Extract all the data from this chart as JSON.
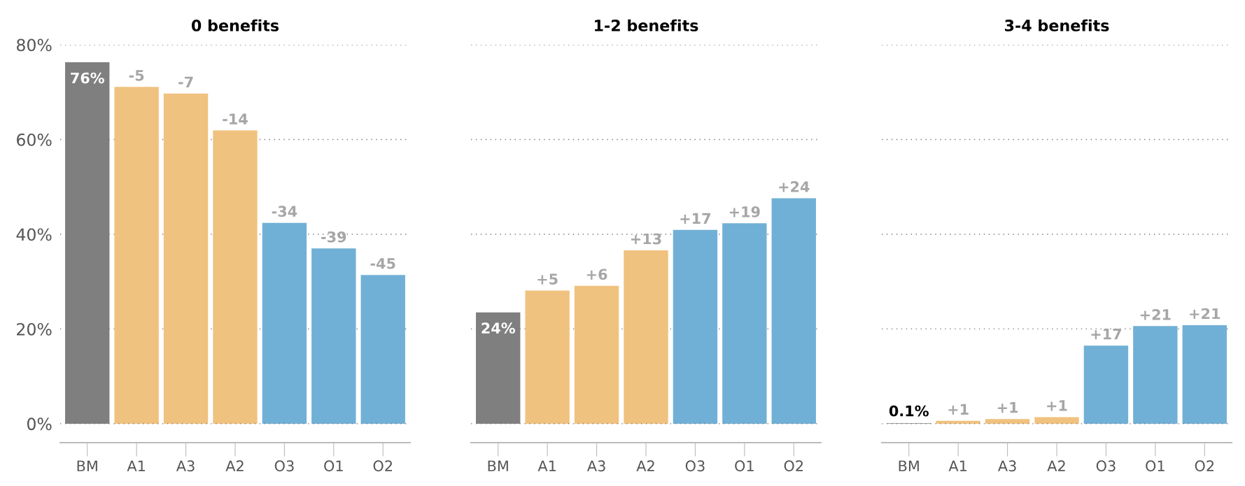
{
  "chart_data": [
    {
      "type": "bar",
      "title": "0 benefits",
      "categories": [
        "BM",
        "A1",
        "A3",
        "A2",
        "O3",
        "O1",
        "O2"
      ],
      "values": [
        76.3,
        71.1,
        69.7,
        61.9,
        42.4,
        37.0,
        31.4
      ],
      "colors": [
        "#7f7f7f",
        "#f0c27f",
        "#f0c27f",
        "#f0c27f",
        "#71b0d6",
        "#71b0d6",
        "#71b0d6"
      ],
      "value_labels": [
        "76%",
        null,
        null,
        null,
        null,
        null,
        null
      ],
      "annotations": [
        {
          "text": "-5",
          "x": "A1",
          "y": 71.1
        },
        {
          "text": "-7",
          "x": "A3",
          "y": 69.7
        },
        {
          "text": "-14",
          "x": "A2",
          "y": 61.9
        },
        {
          "text": "-34",
          "x": "O3",
          "y": 42.4
        },
        {
          "text": "-39",
          "x": "O1",
          "y": 37.0
        },
        {
          "text": "-45",
          "x": "O2",
          "y": 31.4
        }
      ],
      "ylim": [
        -4,
        80
      ],
      "yticks": [
        {
          "value": 0,
          "label": "0%"
        },
        {
          "value": 20,
          "label": "20%"
        },
        {
          "value": 40,
          "label": "40%"
        },
        {
          "value": 60,
          "label": "60%"
        },
        {
          "value": 80,
          "label": "80%"
        }
      ],
      "grid": "y"
    },
    {
      "type": "bar",
      "title": "1-2 benefits",
      "categories": [
        "BM",
        "A1",
        "A3",
        "A2",
        "O3",
        "O1",
        "O2"
      ],
      "values": [
        23.5,
        28.1,
        29.1,
        36.6,
        40.9,
        42.3,
        47.6
      ],
      "colors": [
        "#7f7f7f",
        "#f0c27f",
        "#f0c27f",
        "#f0c27f",
        "#71b0d6",
        "#71b0d6",
        "#71b0d6"
      ],
      "value_labels": [
        "24%",
        null,
        null,
        null,
        null,
        null,
        null
      ],
      "annotations": [
        {
          "text": "+5",
          "x": "A1",
          "y": 28.1
        },
        {
          "text": "+6",
          "x": "A3",
          "y": 29.1
        },
        {
          "text": "+13",
          "x": "A2",
          "y": 36.6
        },
        {
          "text": "+17",
          "x": "O3",
          "y": 40.9
        },
        {
          "text": "+19",
          "x": "O1",
          "y": 42.3
        },
        {
          "text": "+24",
          "x": "O2",
          "y": 47.6
        }
      ],
      "ylim": [
        -4,
        80
      ],
      "yticks": [
        0,
        20,
        40,
        60,
        80
      ],
      "grid": "y",
      "tick_labels": "x"
    },
    {
      "type": "bar",
      "title": "3-4 benefits",
      "categories": [
        "BM",
        "A1",
        "A3",
        "A2",
        "O3",
        "O1",
        "O2"
      ],
      "values": [
        0.1,
        0.6,
        1.0,
        1.4,
        16.5,
        20.6,
        20.8
      ],
      "colors": [
        "#7f7f7f",
        "#f0c27f",
        "#f0c27f",
        "#f0c27f",
        "#71b0d6",
        "#71b0d6",
        "#71b0d6"
      ],
      "value_labels": [
        "0.1%",
        null,
        null,
        null,
        null,
        null,
        null
      ],
      "annotations": [
        {
          "text": "+1",
          "x": "A1",
          "y": 0.6
        },
        {
          "text": "+1",
          "x": "A3",
          "y": 1.0
        },
        {
          "text": "+1",
          "x": "A2",
          "y": 1.4
        },
        {
          "text": "+17",
          "x": "O3",
          "y": 16.5
        },
        {
          "text": "+21",
          "x": "O1",
          "y": 20.6
        },
        {
          "text": "+21",
          "x": "O2",
          "y": 20.8
        }
      ],
      "ylim": [
        -4,
        80
      ],
      "yticks": [
        0,
        20,
        40,
        60,
        80
      ],
      "grid": "y",
      "tick_labels": "x"
    }
  ]
}
